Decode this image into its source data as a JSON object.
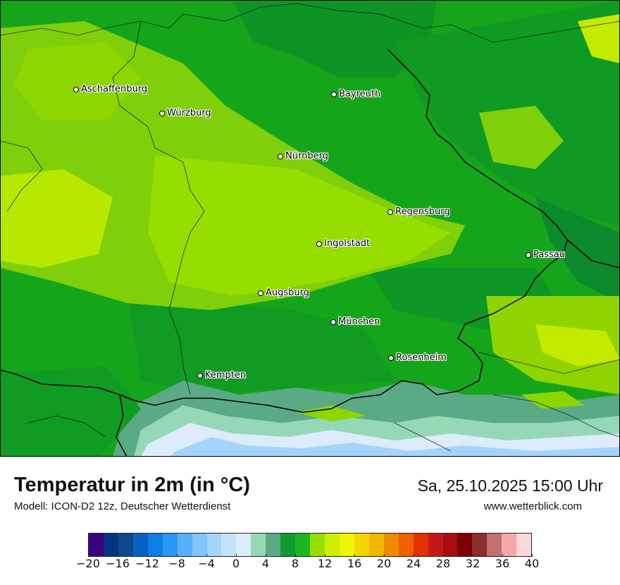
{
  "map": {
    "cities": [
      {
        "name": "Aschaffenburg"
      },
      {
        "name": "Würzburg"
      },
      {
        "name": "Bayreuth"
      },
      {
        "name": "Nürnberg"
      },
      {
        "name": "Regensburg"
      },
      {
        "name": "Ingolstadt"
      },
      {
        "name": "Passau"
      },
      {
        "name": "Augsburg"
      },
      {
        "name": "München"
      },
      {
        "name": "Rosenheim"
      },
      {
        "name": "Kempten"
      }
    ]
  },
  "footer": {
    "title": "Temperatur in 2m (in °C)",
    "model": "Modell: ICON-D2 12z, Deutscher Wetterdienst",
    "datetime": "Sa, 25.10.2025 15:00 Uhr",
    "website": "www.wetterblick.com"
  },
  "legend": {
    "colors": [
      "#3b0080",
      "#053580",
      "#0a4a8a",
      "#0a60c0",
      "#0a80e8",
      "#2a98f5",
      "#5ab0f8",
      "#80c4fa",
      "#a4d4fb",
      "#c4e2fc",
      "#dcecfd",
      "#96d8b6",
      "#5aaa86",
      "#109a30",
      "#1cb71c",
      "#96de00",
      "#ccee00",
      "#f0f600",
      "#f2d600",
      "#f2b600",
      "#f08a00",
      "#ee6000",
      "#e43000",
      "#c41818",
      "#a40f14",
      "#7a0008",
      "#8a2e2e",
      "#c07070",
      "#f4a8a8",
      "#fcd8d8"
    ],
    "tick_labels": [
      "−20",
      "−16",
      "−12",
      "−8",
      "−4",
      "0",
      "4",
      "8",
      "12",
      "16",
      "20",
      "24",
      "28",
      "32",
      "36",
      "40"
    ]
  }
}
